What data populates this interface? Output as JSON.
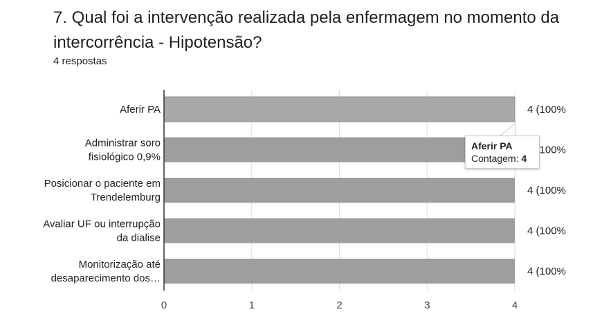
{
  "header": {
    "title": "7. Qual foi a intervenção realizada pela enfermagem no momento da intercorrência - Hipotensão?",
    "responses": "4 respostas"
  },
  "chart_data": {
    "type": "bar",
    "orientation": "horizontal",
    "categories": [
      [
        "Aferir PA"
      ],
      [
        "Administrar soro",
        "fisiológico 0,9%"
      ],
      [
        "Posicionar o paciente em",
        "Trendelemburg"
      ],
      [
        "Avaliar UF ou interrupção",
        "da dialise"
      ],
      [
        "Monitorização até",
        "desaparecimento dos…"
      ]
    ],
    "values": [
      4,
      4,
      4,
      4,
      4
    ],
    "value_labels": [
      "4 (100%",
      "4 (100%",
      "4 (100%",
      "4 (100%",
      "4 (100%"
    ],
    "xlim": [
      0,
      4
    ],
    "xticks": [
      "0",
      "1",
      "2",
      "3",
      "4"
    ],
    "bar_color": "#9e9e9e",
    "highlight_color": "#a9a9a9",
    "grid": true
  },
  "tooltip": {
    "title": "Aferir PA",
    "count_label": "Contagem: ",
    "count_value": "4"
  }
}
